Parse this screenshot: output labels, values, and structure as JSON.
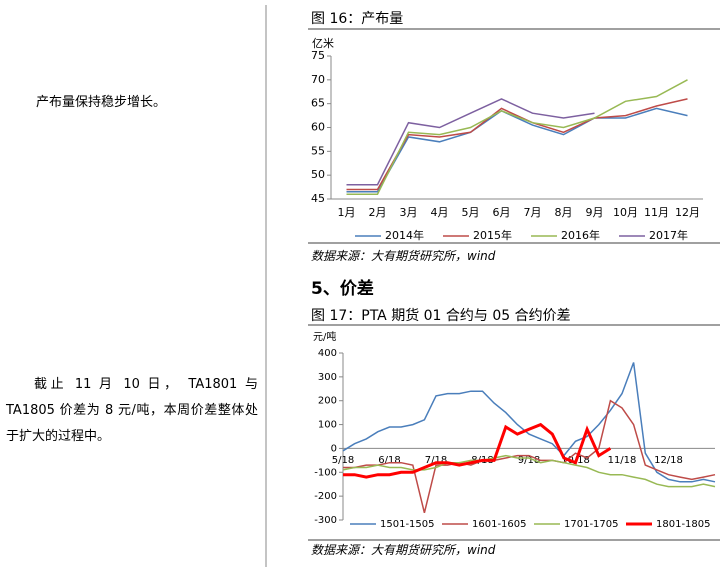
{
  "left_texts": [
    "产布量保持稳步增长。",
    "截止 11 月 10 日， TA1801 与 TA1805 价差为 8 元/吨，本周价差整体处于扩大的过程中。"
  ],
  "figure16": {
    "caption": "图 16：产布量",
    "source": "数据来源：大有期货研究所，wind"
  },
  "section_heading": "5、价差",
  "figure17": {
    "caption": "图 17：PTA 期货 01 合约与 05 合约价差",
    "source": "数据来源：大有期货研究所，wind"
  },
  "chart_data": [
    {
      "type": "line",
      "ylabel": "亿米",
      "categories": [
        "1月",
        "2月",
        "3月",
        "4月",
        "5月",
        "6月",
        "7月",
        "8月",
        "9月",
        "10月",
        "11月",
        "12月"
      ],
      "ylim": [
        45,
        75
      ],
      "yticks": [
        45,
        50,
        55,
        60,
        65,
        70,
        75
      ],
      "series": [
        {
          "name": "2014年",
          "color": "#4a7ebb",
          "values": [
            46.5,
            46.5,
            58,
            57,
            59,
            63.5,
            60.5,
            58.5,
            62,
            62,
            64,
            62.5
          ]
        },
        {
          "name": "2015年",
          "color": "#be4b48",
          "values": [
            47,
            47,
            58.5,
            58,
            59,
            64,
            61,
            59,
            62,
            62.5,
            64.5,
            66
          ]
        },
        {
          "name": "2016年",
          "color": "#98b954",
          "values": [
            46,
            46,
            59,
            58.5,
            60,
            63.5,
            61,
            60,
            62,
            65.5,
            66.5,
            70
          ]
        },
        {
          "name": "2017年",
          "color": "#7d60a0",
          "values": [
            48,
            48,
            61,
            60,
            63,
            66,
            63,
            62,
            63,
            null,
            null,
            null
          ]
        }
      ]
    },
    {
      "type": "line",
      "ylabel": "元/吨",
      "categories": [
        "5/18",
        null,
        null,
        null,
        "6/18",
        null,
        null,
        null,
        "7/18",
        null,
        null,
        null,
        "8/18",
        null,
        null,
        null,
        "9/18",
        null,
        null,
        null,
        "10/18",
        null,
        null,
        null,
        "11/18",
        null,
        null,
        null,
        "12/18",
        null,
        null,
        null,
        null
      ],
      "ylim": [
        -300,
        400
      ],
      "yticks": [
        -300,
        -200,
        -100,
        0,
        100,
        200,
        300,
        400
      ],
      "series": [
        {
          "name": "1501-1505",
          "color": "#4a7ebb",
          "values": [
            -10,
            20,
            40,
            70,
            90,
            90,
            100,
            120,
            220,
            230,
            230,
            240,
            240,
            190,
            150,
            100,
            60,
            40,
            20,
            -30,
            30,
            50,
            100,
            160,
            230,
            360,
            -20,
            -100,
            -130,
            -140,
            -140,
            -130,
            -140
          ]
        },
        {
          "name": "1601-1605",
          "color": "#be4b48",
          "values": [
            -80,
            -80,
            -70,
            -70,
            -60,
            -60,
            -70,
            -270,
            -70,
            -70,
            -60,
            -70,
            -50,
            -50,
            -40,
            -30,
            -30,
            -50,
            -50,
            -60,
            -20,
            -40,
            0,
            200,
            170,
            100,
            -70,
            -90,
            -110,
            -120,
            -130,
            -120,
            -110
          ]
        },
        {
          "name": "1701-1705",
          "color": "#98b954",
          "values": [
            -90,
            -80,
            -80,
            -70,
            -80,
            -80,
            -90,
            -90,
            -80,
            -60,
            -60,
            -50,
            -50,
            -40,
            -30,
            -40,
            -40,
            -60,
            -50,
            -60,
            -70,
            -80,
            -100,
            -110,
            -110,
            -120,
            -130,
            -150,
            -160,
            -160,
            -160,
            -150,
            -160
          ]
        },
        {
          "name": "1801-1805",
          "color": "#ff0000",
          "values": [
            -110,
            -110,
            -120,
            -110,
            -110,
            -100,
            -100,
            -80,
            -60,
            -60,
            -70,
            -60,
            -50,
            -50,
            90,
            60,
            80,
            100,
            60,
            -40,
            -60,
            80,
            -30,
            0,
            null,
            null,
            null,
            null,
            null,
            null,
            null,
            null,
            null
          ]
        }
      ]
    }
  ]
}
